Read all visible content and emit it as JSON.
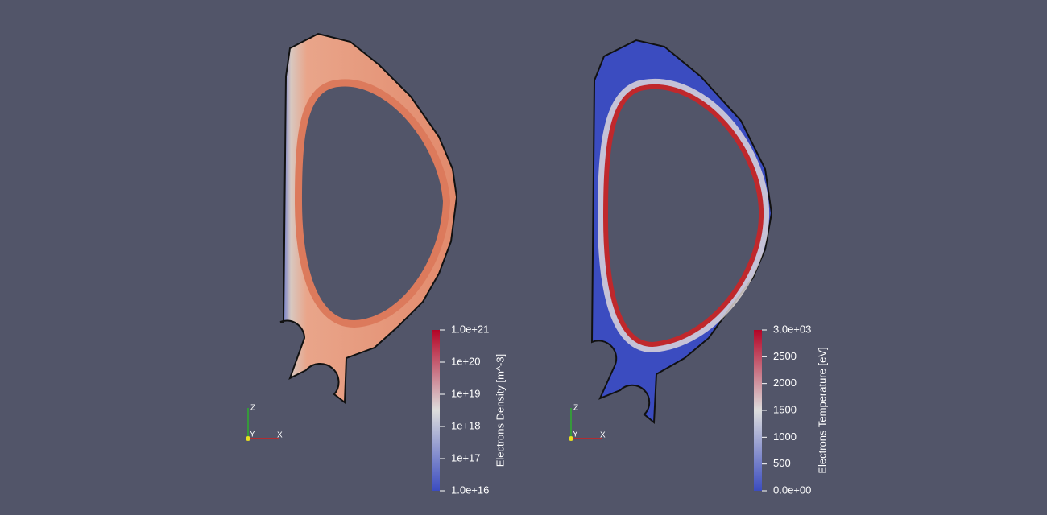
{
  "views": [
    {
      "colorbar": {
        "title": "Electrons Density [m^-3]",
        "range": [
          1e+16,
          1e+21
        ],
        "log": true,
        "ticks": [
          {
            "value": 1e+21,
            "label": "1.0e+21"
          },
          {
            "value": 1e+20,
            "label": "1e+20"
          },
          {
            "value": 1e+19,
            "label": "1e+19"
          },
          {
            "value": 1e+18,
            "label": "1e+18"
          },
          {
            "value": 1e+17,
            "label": "1e+17"
          },
          {
            "value": 1e+16,
            "label": "1.0e+16"
          }
        ]
      },
      "axes": {
        "x": "X",
        "y": "Y",
        "z": "Z"
      }
    },
    {
      "colorbar": {
        "title": "Electrons Temperature [eV]",
        "range": [
          0,
          3000
        ],
        "log": false,
        "ticks": [
          {
            "value": 3000,
            "label": "3.0e+03"
          },
          2500,
          2000,
          1500,
          1000,
          500,
          {
            "value": 0,
            "label": "0.0e+00"
          }
        ]
      },
      "axes": {
        "x": "X",
        "y": "Y",
        "z": "Z"
      }
    }
  ]
}
